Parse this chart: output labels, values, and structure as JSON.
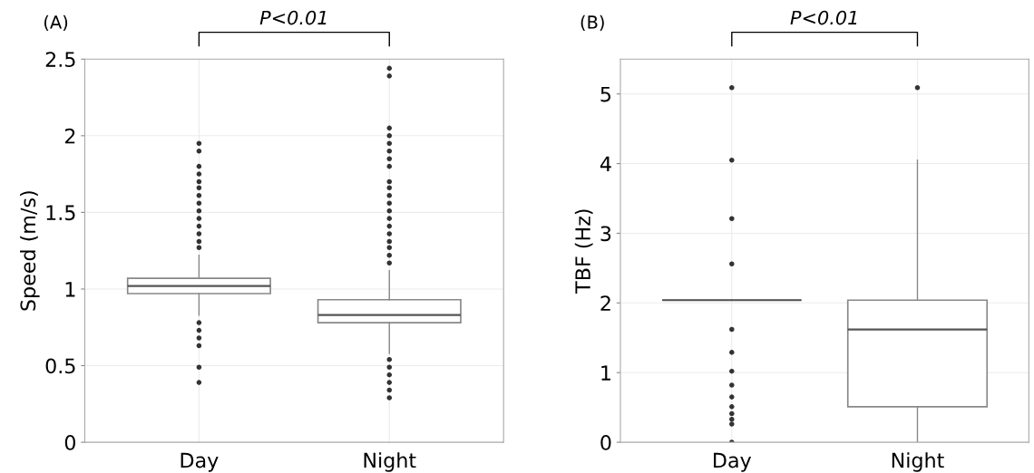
{
  "chart_data": [
    {
      "type": "box",
      "title": "(A)",
      "ylabel": "Speed (m/s)",
      "categories": [
        "Day",
        "Night"
      ],
      "ylim": [
        0,
        2.5
      ],
      "yticks": [
        0,
        0.5,
        1,
        1.5,
        2,
        2.5
      ],
      "grid": true,
      "annotations": [
        "P<0.01"
      ],
      "boxes": [
        {
          "low": 0.83,
          "q1": 0.97,
          "median": 1.02,
          "q3": 1.07,
          "high": 1.22,
          "outliers": [
            1.95,
            1.9,
            1.8,
            1.75,
            1.7,
            1.66,
            1.61,
            1.56,
            1.51,
            1.46,
            1.41,
            1.36,
            1.31,
            1.27,
            0.78,
            0.73,
            0.68,
            0.63,
            0.49,
            0.39
          ]
        },
        {
          "low": 0.58,
          "q1": 0.78,
          "median": 0.83,
          "q3": 0.93,
          "high": 1.12,
          "outliers": [
            2.44,
            2.39,
            2.05,
            2.0,
            1.95,
            1.9,
            1.85,
            1.8,
            1.7,
            1.66,
            1.61,
            1.56,
            1.51,
            1.46,
            1.41,
            1.36,
            1.31,
            1.27,
            1.22,
            1.17,
            0.54,
            0.49,
            0.44,
            0.39,
            0.34,
            0.29
          ]
        }
      ]
    },
    {
      "type": "box",
      "title": "(B)",
      "ylabel": "TBF (Hz)",
      "categories": [
        "Day",
        "Night"
      ],
      "ylim": [
        0,
        5.5
      ],
      "yticks": [
        0,
        1,
        2,
        3,
        4,
        5
      ],
      "grid": true,
      "annotations": [
        "P<0.01"
      ],
      "boxes": [
        {
          "low": 2.04,
          "q1": 2.04,
          "median": 2.04,
          "q3": 2.04,
          "high": 2.04,
          "outliers": [
            5.09,
            4.05,
            3.21,
            2.56,
            1.62,
            1.29,
            1.02,
            0.82,
            0.65,
            0.51,
            0.41,
            0.33,
            0.26,
            0
          ]
        },
        {
          "low": 0,
          "q1": 0.51,
          "median": 1.62,
          "q3": 2.04,
          "high": 4.05,
          "outliers": [
            5.09
          ]
        }
      ]
    }
  ]
}
